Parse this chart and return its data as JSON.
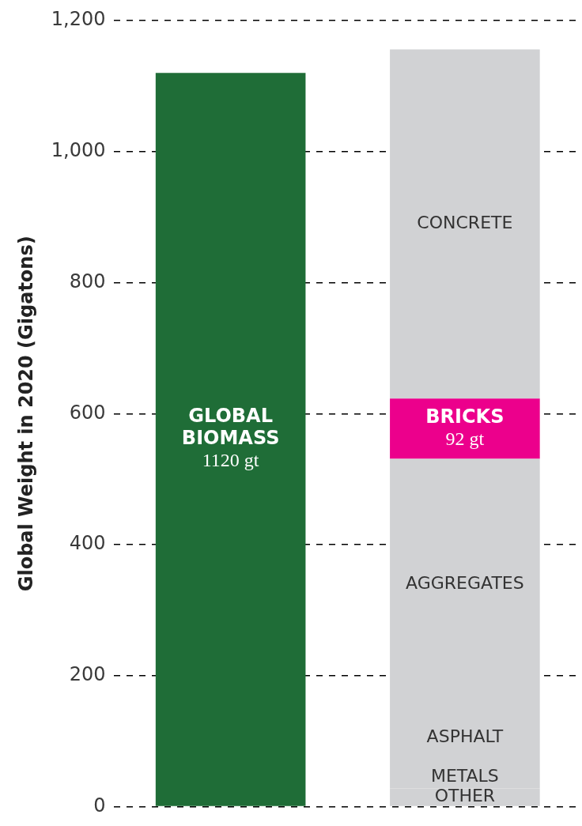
{
  "chart_data": {
    "type": "bar",
    "stacked": true,
    "ylabel": "Global Weight in 2020 (Gigatons)",
    "categories": [
      null,
      null
    ],
    "series": [
      {
        "name": "GLOBAL BIOMASS",
        "color": "#1f6d37",
        "values": [
          1120,
          null
        ],
        "value_labels": [
          "1120 gt",
          null
        ]
      },
      {
        "name": "OTHER",
        "color": "#d1d2d4",
        "values": [
          null,
          28
        ]
      },
      {
        "name": "METALS",
        "color": "#d1d2d4",
        "values": [
          null,
          33
        ]
      },
      {
        "name": "ASPHALT",
        "color": "#d1d2d4",
        "values": [
          null,
          88
        ]
      },
      {
        "name": "AGGREGATES",
        "color": "#d1d2d4",
        "values": [
          null,
          382
        ]
      },
      {
        "name": "BRICKS",
        "color": "#ec008c",
        "values": [
          null,
          92
        ],
        "value_labels": [
          null,
          "92 gt"
        ]
      },
      {
        "name": "CONCRETE",
        "color": "#d1d2d4",
        "values": [
          null,
          533
        ]
      }
    ],
    "ylim": [
      0,
      1200
    ],
    "yticks": [
      0,
      200,
      400,
      600,
      800,
      {
        "value": 1000,
        "label": "1,000"
      },
      {
        "value": 1200,
        "label": "1,200"
      }
    ],
    "grid": "y",
    "legend": false,
    "tick_labels": "y"
  }
}
